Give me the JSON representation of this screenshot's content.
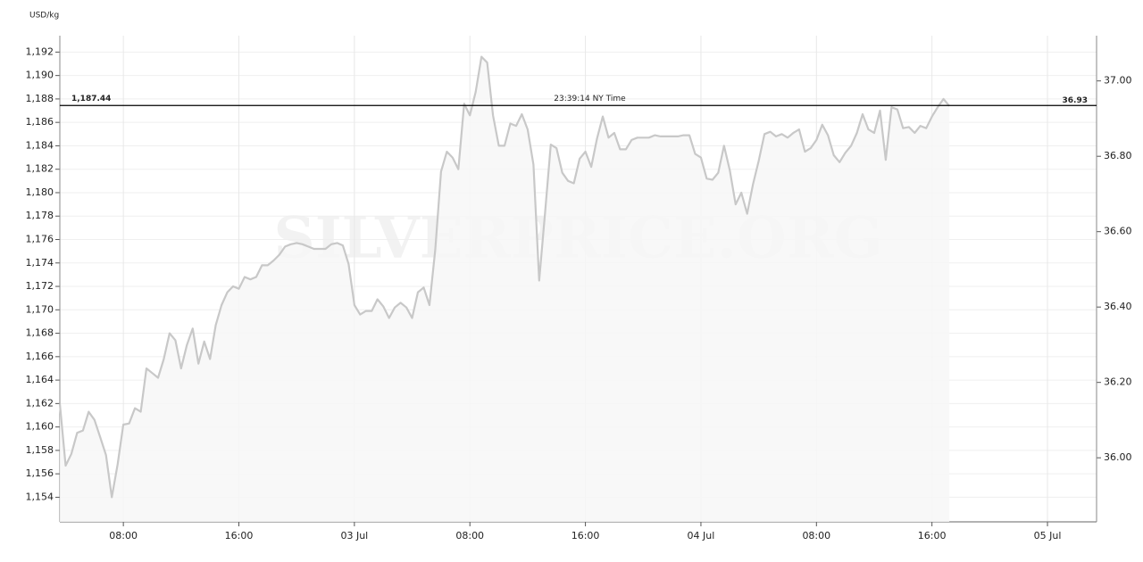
{
  "chart_data": {
    "type": "line",
    "ylabel": "USD/kg",
    "watermark": "SILVERPRICE.ORG",
    "grid": true,
    "x": [
      3.6,
      4,
      4.4,
      4.8,
      5.2,
      5.6,
      6,
      6.4,
      6.8,
      7.2,
      7.6,
      8,
      8.4,
      8.8,
      9.2,
      9.6,
      10,
      10.4,
      10.8,
      11.2,
      11.6,
      12,
      12.4,
      12.8,
      13.2,
      13.6,
      14,
      14.4,
      14.8,
      15.2,
      15.6,
      16,
      16.4,
      16.8,
      17.2,
      17.6,
      18,
      18.4,
      18.8,
      19.2,
      19.6,
      20,
      20.4,
      20.8,
      21.2,
      21.6,
      22,
      22.4,
      22.8,
      23.2,
      23.6,
      24,
      24.4,
      24.8,
      25.2,
      25.6,
      26,
      26.4,
      26.8,
      27.2,
      27.6,
      28,
      28.4,
      28.8,
      29.2,
      29.6,
      30,
      30.4,
      30.8,
      31.2,
      31.6,
      32,
      32.4,
      32.8,
      33.2,
      33.6,
      34,
      34.4,
      34.8,
      35.2,
      35.6,
      36,
      36.4,
      36.8,
      37.2,
      37.6,
      38,
      38.4,
      38.8,
      39.2,
      39.6,
      40,
      40.4,
      40.8,
      41.2,
      41.6,
      42,
      42.4,
      42.8,
      43.2,
      43.6,
      44,
      44.4,
      44.8,
      45.2,
      45.6,
      46,
      46.4,
      46.8,
      47.2,
      47.6,
      48,
      48.4,
      48.8,
      49.2,
      49.6,
      50,
      50.4,
      50.8,
      51.2,
      51.6,
      52,
      52.4,
      52.8,
      53.2,
      53.6,
      54,
      54.4,
      54.8,
      55.2,
      55.6,
      56,
      56.4,
      56.8,
      57.2,
      57.6,
      58,
      58.4,
      58.8,
      59.2,
      59.6,
      60,
      60.4,
      60.8,
      61.2,
      61.6,
      62,
      62.4,
      62.8,
      63.2,
      63.6,
      64,
      64.4,
      64.8,
      65.2
    ],
    "series": [
      {
        "color": "#c8c8c8",
        "values": [
          1162.0,
          1156.7,
          1157.7,
          1159.5,
          1159.7,
          1161.3,
          1160.6,
          1159.1,
          1157.6,
          1154.0,
          1156.8,
          1160.2,
          1160.3,
          1161.6,
          1161.3,
          1165.0,
          1164.6,
          1164.2,
          1165.8,
          1168.0,
          1167.4,
          1165.0,
          1167.0,
          1168.4,
          1165.4,
          1167.3,
          1165.8,
          1168.7,
          1170.4,
          1171.5,
          1172.0,
          1171.8,
          1172.8,
          1172.6,
          1172.8,
          1173.8,
          1173.8,
          1174.2,
          1174.7,
          1175.4,
          1175.6,
          1175.7,
          1175.6,
          1175.4,
          1175.2,
          1175.2,
          1175.2,
          1175.6,
          1175.7,
          1175.5,
          1173.9,
          1170.4,
          1169.6,
          1169.9,
          1169.9,
          1170.9,
          1170.3,
          1169.3,
          1170.2,
          1170.6,
          1170.2,
          1169.3,
          1171.5,
          1171.9,
          1170.4,
          1175.1,
          1181.8,
          1183.5,
          1183.0,
          1182.0,
          1187.6,
          1186.6,
          1188.6,
          1191.6,
          1191.1,
          1186.6,
          1184.0,
          1184.0,
          1185.9,
          1185.7,
          1186.7,
          1185.4,
          1182.4,
          1172.5,
          1178.2,
          1184.1,
          1183.8,
          1181.7,
          1181.0,
          1180.8,
          1182.9,
          1183.5,
          1182.2,
          1184.6,
          1186.5,
          1184.7,
          1185.1,
          1183.7,
          1183.7,
          1184.5,
          1184.7,
          1184.7,
          1184.7,
          1184.9,
          1184.8,
          1184.8,
          1184.8,
          1184.8,
          1184.9,
          1184.9,
          1183.3,
          1183.0,
          1181.2,
          1181.1,
          1181.7,
          1184.0,
          1181.9,
          1179.0,
          1180.0,
          1178.2,
          1180.7,
          1182.7,
          1185.0,
          1185.2,
          1184.8,
          1185.0,
          1184.7,
          1185.1,
          1185.4,
          1183.5,
          1183.8,
          1184.5,
          1185.8,
          1184.9,
          1183.2,
          1182.6,
          1183.4,
          1184.0,
          1185.1,
          1186.7,
          1185.4,
          1185.1,
          1187.0,
          1182.8,
          1187.3,
          1187.1,
          1185.5,
          1185.6,
          1185.1,
          1185.7,
          1185.5,
          1186.5,
          1187.3,
          1188.0,
          1187.4
        ]
      }
    ],
    "xlim": [
      3.6,
      75.4
    ],
    "xticks": [
      {
        "value": 8,
        "label": "08:00"
      },
      {
        "value": 16,
        "label": "16:00"
      },
      {
        "value": 24,
        "label": "03 Jul"
      },
      {
        "value": 32,
        "label": "08:00"
      },
      {
        "value": 40,
        "label": "16:00"
      },
      {
        "value": 48,
        "label": "04 Jul"
      },
      {
        "value": 56,
        "label": "08:00"
      },
      {
        "value": 64,
        "label": "16:00"
      },
      {
        "value": 72,
        "label": "05 Jul"
      }
    ],
    "ylim": [
      1151.9,
      1193.4
    ],
    "yticks": [
      {
        "value": 1154,
        "label": "1,154"
      },
      {
        "value": 1156,
        "label": "1,156"
      },
      {
        "value": 1158,
        "label": "1,158"
      },
      {
        "value": 1160,
        "label": "1,160"
      },
      {
        "value": 1162,
        "label": "1,162"
      },
      {
        "value": 1164,
        "label": "1,164"
      },
      {
        "value": 1166,
        "label": "1,166"
      },
      {
        "value": 1168,
        "label": "1,168"
      },
      {
        "value": 1170,
        "label": "1,170"
      },
      {
        "value": 1172,
        "label": "1,172"
      },
      {
        "value": 1174,
        "label": "1,174"
      },
      {
        "value": 1176,
        "label": "1,176"
      },
      {
        "value": 1178,
        "label": "1,178"
      },
      {
        "value": 1180,
        "label": "1,180"
      },
      {
        "value": 1182,
        "label": "1,182"
      },
      {
        "value": 1184,
        "label": "1,184"
      },
      {
        "value": 1186,
        "label": "1,186"
      },
      {
        "value": 1188,
        "label": "1,188"
      },
      {
        "value": 1190,
        "label": "1,190"
      },
      {
        "value": 1192,
        "label": "1,192"
      }
    ],
    "y2lim": [
      35.83,
      37.12
    ],
    "y2ticks": [
      {
        "value": 36.0,
        "label": "36.00"
      },
      {
        "value": 36.2,
        "label": "36.20"
      },
      {
        "value": 36.4,
        "label": "36.40"
      },
      {
        "value": 36.6,
        "label": "36.60"
      },
      {
        "value": 36.8,
        "label": "36.80"
      },
      {
        "value": 37.0,
        "label": "37.00"
      }
    ],
    "current": {
      "value": 1187.44,
      "label": "1,187.44",
      "value2": 36.93,
      "label2": "36.93",
      "time": "23:39:14 NY Time"
    }
  }
}
